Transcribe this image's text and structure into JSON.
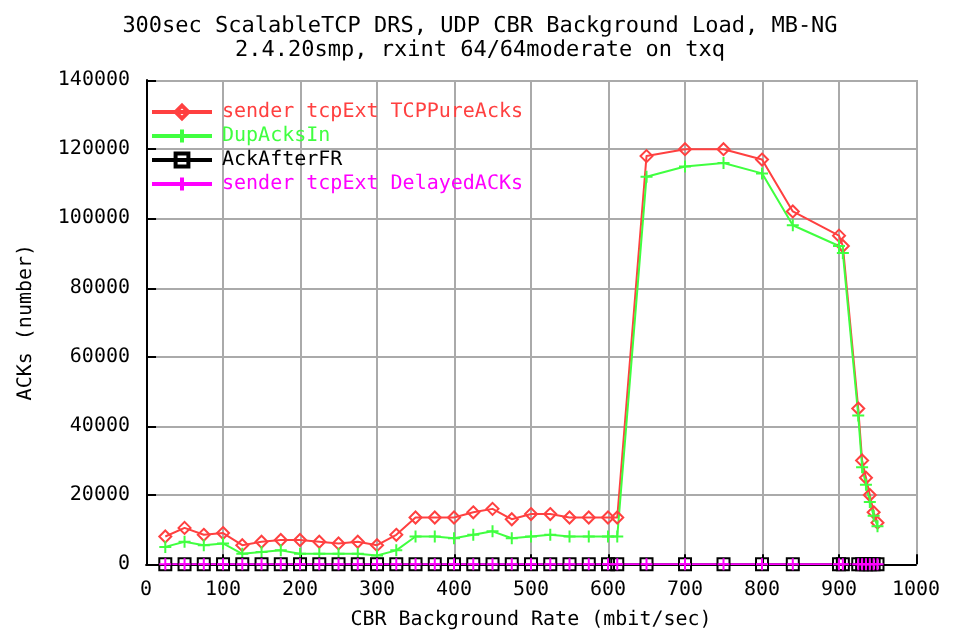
{
  "chart_data": {
    "type": "line",
    "title": "300sec ScalableTCP DRS, UDP CBR Background Load, MB-NG",
    "subtitle": "2.4.20smp, rxint 64/64moderate on txq",
    "xlabel": "CBR Background Rate (mbit/sec)",
    "ylabel": "ACKs (number)",
    "x": [
      25,
      50,
      75,
      100,
      125,
      150,
      175,
      200,
      225,
      250,
      275,
      300,
      325,
      350,
      375,
      400,
      425,
      450,
      475,
      500,
      525,
      550,
      575,
      600,
      612,
      650,
      700,
      750,
      800,
      840,
      900,
      905,
      925,
      930,
      935,
      940,
      945,
      950
    ],
    "series": [
      {
        "name": "sender tcpExt TCPPureAcks",
        "color": "#ff4040",
        "marker": "diamond",
        "values": [
          8000,
          10500,
          8500,
          9000,
          5500,
          6500,
          7000,
          7000,
          6500,
          6000,
          6500,
          5500,
          8500,
          13500,
          13500,
          13500,
          15000,
          16000,
          13000,
          14500,
          14500,
          13500,
          13500,
          13500,
          13500,
          118000,
          120000,
          120000,
          117000,
          102000,
          95000,
          92000,
          45000,
          30000,
          25000,
          20000,
          15000,
          12000
        ]
      },
      {
        "name": "DupAcksIn",
        "color": "#40ff40",
        "marker": "cross",
        "values": [
          5000,
          6500,
          5500,
          6000,
          3000,
          3500,
          4000,
          3000,
          3000,
          3000,
          3000,
          2500,
          4000,
          8000,
          8000,
          7500,
          8500,
          9500,
          7500,
          8000,
          8500,
          8000,
          8000,
          8000,
          8000,
          112000,
          115000,
          116000,
          113000,
          98000,
          92000,
          90000,
          43000,
          28000,
          23000,
          18000,
          14000,
          11000
        ]
      },
      {
        "name": "AckAfterFR",
        "color": "#000000",
        "marker": "square",
        "values": [
          0,
          0,
          0,
          0,
          0,
          0,
          0,
          0,
          0,
          0,
          0,
          0,
          0,
          0,
          0,
          0,
          0,
          0,
          0,
          0,
          0,
          0,
          0,
          0,
          0,
          0,
          0,
          0,
          0,
          0,
          0,
          0,
          0,
          0,
          0,
          0,
          0,
          0
        ]
      },
      {
        "name": "sender tcpExt DelayedACKs",
        "color": "#ff00ff",
        "marker": "cross",
        "values": [
          0,
          0,
          0,
          0,
          0,
          0,
          0,
          0,
          0,
          0,
          0,
          0,
          0,
          0,
          0,
          0,
          0,
          0,
          0,
          0,
          0,
          0,
          0,
          0,
          0,
          0,
          0,
          0,
          0,
          0,
          0,
          0,
          0,
          0,
          0,
          0,
          0,
          0
        ]
      }
    ],
    "xlim": [
      0,
      1000
    ],
    "xticks": [
      0,
      100,
      200,
      300,
      400,
      500,
      600,
      700,
      800,
      900,
      1000
    ],
    "ylim": [
      0,
      140000
    ],
    "yticks": [
      0,
      20000,
      40000,
      60000,
      80000,
      100000,
      120000,
      140000
    ],
    "grid": true,
    "legend": "top left",
    "line_style": "solid"
  }
}
